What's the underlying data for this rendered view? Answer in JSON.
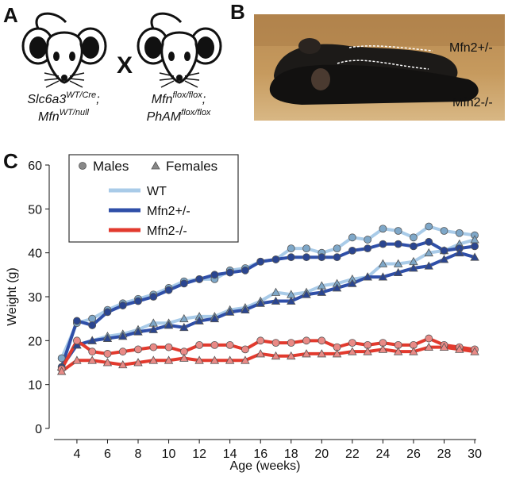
{
  "panel_labels": [
    "A",
    "B",
    "C"
  ],
  "cross": {
    "symbol": "X",
    "parents": [
      {
        "lines": [
          {
            "base": "Slc6a3",
            "sup": "WT/Cre",
            "suffix": ";"
          },
          {
            "base": "Mfn",
            "sup": "WT/null"
          }
        ]
      },
      {
        "lines": [
          {
            "base": "Mfn",
            "sup": "flox/flox",
            "suffix": ";"
          },
          {
            "base": "PhAM",
            "sup": "flox/flox"
          }
        ]
      }
    ]
  },
  "photo_labels": [
    "Mfn2+/-",
    "Mfn2-/-"
  ],
  "chart_data": {
    "type": "line",
    "x_label": "Age (weeks)",
    "y_label": "Weight (g)",
    "x": [
      3,
      4,
      5,
      6,
      7,
      8,
      9,
      10,
      11,
      12,
      13,
      14,
      15,
      16,
      17,
      18,
      19,
      20,
      21,
      22,
      23,
      24,
      25,
      26,
      27,
      28,
      29,
      30
    ],
    "xlim": [
      2.5,
      30.1
    ],
    "xticks": [
      4,
      6,
      8,
      10,
      12,
      14,
      16,
      18,
      20,
      22,
      24,
      26,
      28,
      30
    ],
    "ylim": [
      0,
      60
    ],
    "yticks": [
      0,
      10,
      20,
      30,
      40,
      50,
      60
    ],
    "legend": {
      "corner": "top-left",
      "markers": [
        {
          "label": "Males",
          "marker": "circle"
        },
        {
          "label": "Females",
          "marker": "triangle"
        }
      ]
    },
    "series": [
      {
        "name": "WT",
        "marker": "circle",
        "color": "#a9cbe8",
        "marker_color": "#7ea7c8",
        "values": [
          16,
          24,
          25,
          27,
          28.5,
          29.5,
          30.5,
          32,
          33.5,
          34,
          34,
          36,
          36.5,
          38,
          38.5,
          41,
          41,
          40,
          41,
          43.5,
          43,
          45.5,
          45,
          43.5,
          46,
          45,
          44.5,
          44
        ]
      },
      {
        "name": "WT",
        "marker": "triangle",
        "color": "#a9cbe8",
        "marker_color": "#7ea7c8",
        "values": [
          14,
          19,
          20,
          21,
          21.5,
          22.5,
          24,
          24,
          25,
          25.5,
          25.5,
          27,
          27.5,
          29,
          31,
          30.5,
          31,
          32.5,
          33,
          34,
          34.5,
          37.5,
          37.5,
          38,
          40,
          40.5,
          42,
          43
        ]
      },
      {
        "name": "Mfn2+/-",
        "marker": "circle",
        "color": "#2f4fa8",
        "marker_color": "#2a4590",
        "values": [
          14,
          24.5,
          23.5,
          26.5,
          28,
          29,
          30,
          31.5,
          33,
          34,
          35,
          35.5,
          36,
          38,
          38.5,
          39,
          39,
          39,
          39,
          40.5,
          41,
          42,
          42,
          41.5,
          42.5,
          40.5,
          41,
          41.5
        ]
      },
      {
        "name": "Mfn2+/-",
        "marker": "triangle",
        "color": "#2f4fa8",
        "marker_color": "#2a4590",
        "values": [
          14,
          19,
          20,
          20.5,
          21,
          22,
          22.5,
          23.5,
          23,
          24.5,
          25,
          26.5,
          27,
          28.5,
          29,
          29,
          30.5,
          31,
          32,
          33,
          34.5,
          34.5,
          35.5,
          36.5,
          37,
          38.5,
          40,
          39
        ]
      },
      {
        "name": "Mfn2-/-",
        "marker": "circle",
        "color": "#e23a2e",
        "marker_color": "#e98a86",
        "values": [
          13.5,
          20,
          17.5,
          17,
          17.5,
          18,
          18.5,
          18.5,
          17.5,
          19,
          19,
          19,
          18,
          20,
          19.5,
          19.5,
          20,
          20,
          18.5,
          19.5,
          19,
          19.5,
          19,
          19,
          20.5,
          19,
          18.5,
          18
        ]
      },
      {
        "name": "Mfn2-/-",
        "marker": "triangle",
        "color": "#e23a2e",
        "marker_color": "#e98a86",
        "values": [
          13,
          15.5,
          15.5,
          15,
          14.5,
          15,
          15.5,
          15.5,
          16,
          15.5,
          15.5,
          15.5,
          15.5,
          17,
          16.5,
          16.5,
          17,
          17,
          17,
          17.5,
          17.5,
          18,
          17.5,
          17.5,
          18.5,
          18.5,
          18,
          17.5
        ]
      }
    ]
  }
}
